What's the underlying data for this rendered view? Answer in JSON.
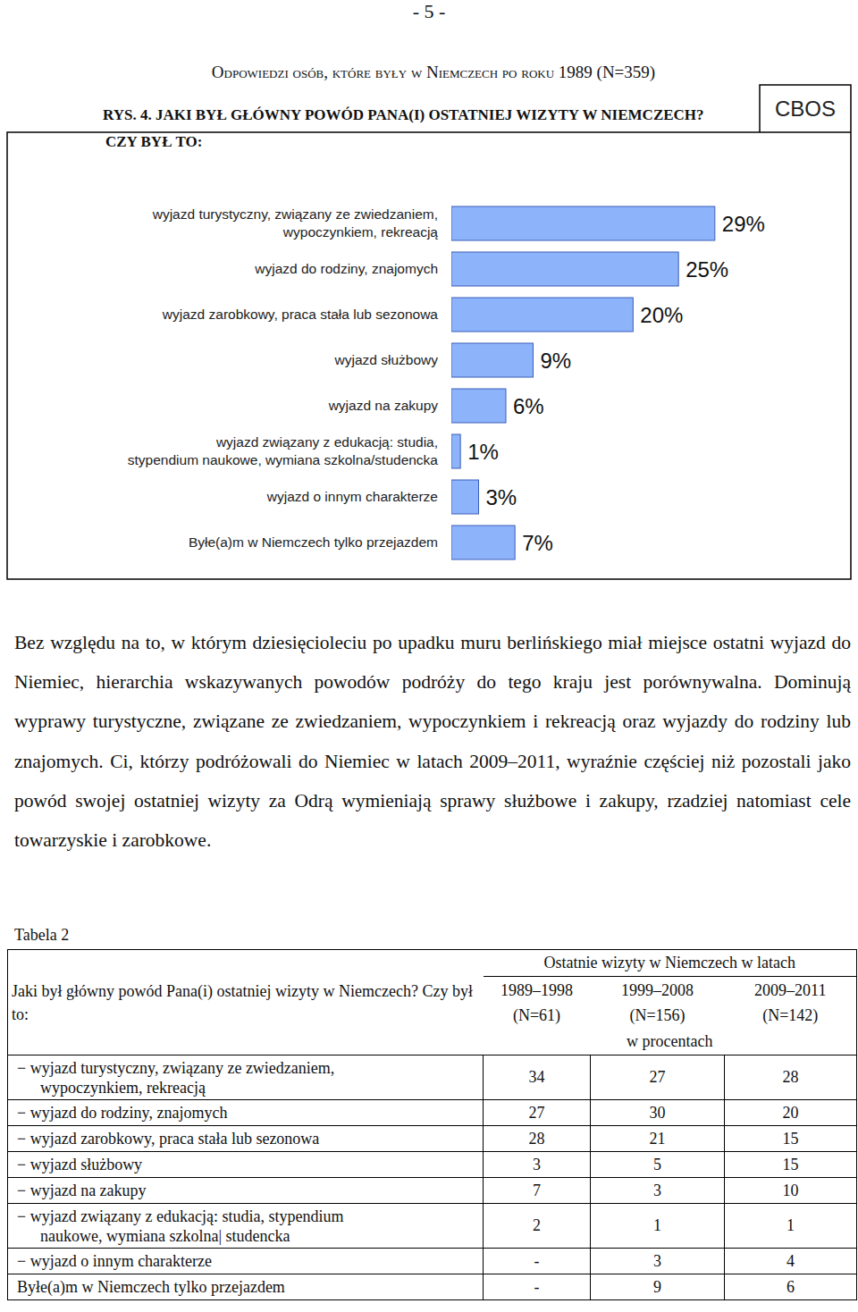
{
  "page_number": "- 5 -",
  "header": "Odpowiedzi osób, które były w Niemczech po roku 1989 (N=359)",
  "logo": "CBOS",
  "chart_data": {
    "type": "bar",
    "orientation": "horizontal",
    "title": "RYS. 4. JAKI BYŁ GŁÓWNY POWÓD PANA(I) OSTATNIEJ WIZYTY W NIEMCZECH?",
    "subtitle": "CZY BYŁ TO:",
    "categories": [
      "wyjazd turystyczny, związany ze zwiedzaniem,\nwypoczynkiem, rekreacją",
      "wyjazd do rodziny, znajomych",
      "wyjazd zarobkowy, praca stała lub sezonowa",
      "wyjazd służbowy",
      "wyjazd na zakupy",
      "wyjazd związany z edukacją: studia,\nstypendium naukowe, wymiana szkolna/studencka",
      "wyjazd o innym charakterze",
      "Byłe(a)m w Niemczech tylko przejazdem"
    ],
    "values": [
      29,
      25,
      20,
      9,
      6,
      1,
      3,
      7
    ],
    "value_labels": [
      "29%",
      "25%",
      "20%",
      "9%",
      "6%",
      "1%",
      "3%",
      "7%"
    ],
    "data_labels": true,
    "color": "#8db3fb",
    "xlim": [
      0,
      30
    ],
    "tick_labels": false,
    "grid": false
  },
  "paragraph": "Bez względu na to, w którym dziesięcioleciu po upadku muru berlińskiego miał miejsce ostatni wyjazd do Niemiec, hierarchia wskazywanych powodów podróży do tego kraju jest porównywalna. Dominują wyprawy turystyczne, związane ze zwiedzaniem, wypoczynkiem i rekreacją oraz wyjazdy do rodziny lub znajomych. Ci, którzy podróżowali do Niemiec w latach 2009–2011, wyraźnie częściej niż pozostali jako powód swojej ostatniej wizyty za Odrą wymieniają sprawy służbowe i zakupy, rzadziej natomiast cele towarzyskie i zarobkowe.",
  "table": {
    "caption": "Tabela 2",
    "question": "Jaki był główny powód Pana(i) ostatniej wizyty w Niemczech? Czy był to:",
    "group_header": "Ostatnie wizyty w Niemczech w latach",
    "columns": [
      {
        "years": "1989–1998",
        "n": "(N=61)"
      },
      {
        "years": "1999–2008",
        "n": "(N=156)"
      },
      {
        "years": "2009–2011",
        "n": "(N=142)"
      }
    ],
    "unit": "w procentach",
    "rows": [
      {
        "label": "− wyjazd turystyczny, związany ze zwiedzaniem,\nwypoczynkiem, rekreacją",
        "values": [
          34,
          27,
          28
        ]
      },
      {
        "label": "− wyjazd do rodziny, znajomych",
        "values": [
          27,
          30,
          20
        ]
      },
      {
        "label": "− wyjazd zarobkowy, praca stała lub sezonowa",
        "values": [
          28,
          21,
          15
        ]
      },
      {
        "label": "− wyjazd służbowy",
        "values": [
          3,
          5,
          15
        ]
      },
      {
        "label": "− wyjazd na zakupy",
        "values": [
          7,
          3,
          10
        ]
      },
      {
        "label": "− wyjazd związany z edukacją: studia, stypendium\nnaukowe, wymiana szkolna| studencka",
        "values": [
          2,
          1,
          1
        ]
      },
      {
        "label": "− wyjazd o innym charakterze",
        "values": [
          "-",
          3,
          4
        ]
      },
      {
        "label": "Byłe(a)m w Niemczech tylko przejazdem",
        "values": [
          "-",
          9,
          6
        ]
      }
    ]
  }
}
